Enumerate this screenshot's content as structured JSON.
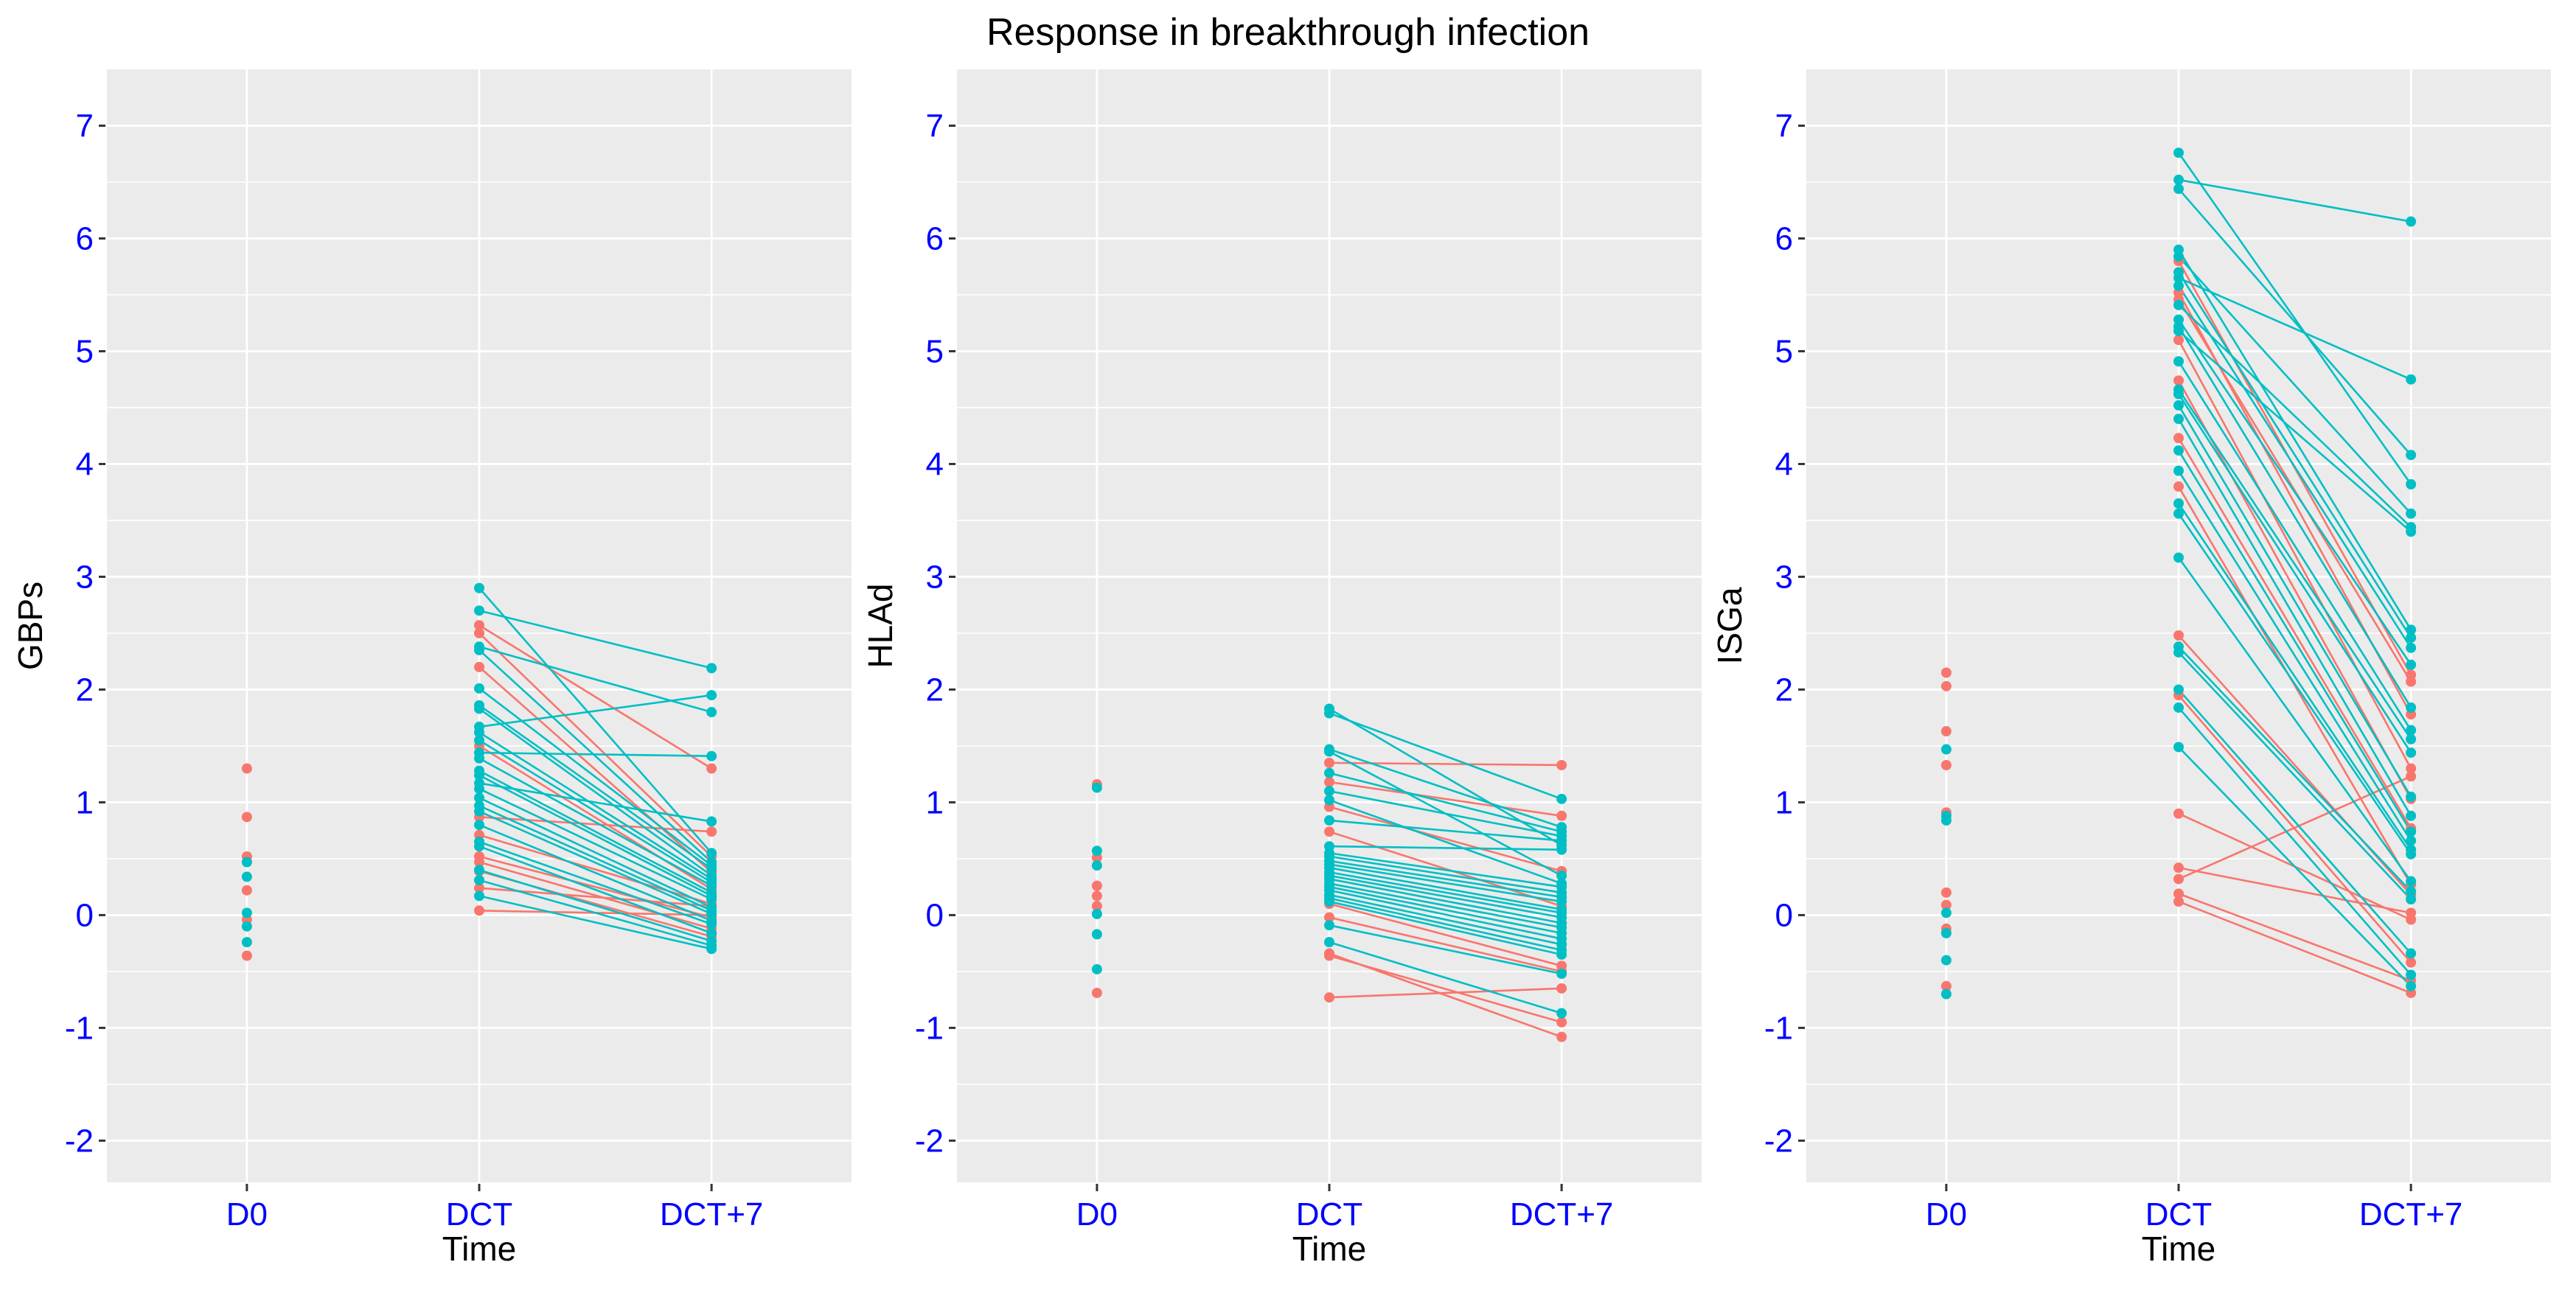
{
  "chart_data": {
    "type": "line",
    "title": "Response in breakthrough infection",
    "xlabel": "Time",
    "categories": [
      "D0",
      "DCT",
      "DCT+7"
    ],
    "ylim": [
      -2.37,
      7.5
    ],
    "yticks": [
      -2,
      -1,
      0,
      1,
      2,
      3,
      4,
      5,
      6,
      7
    ],
    "grid": {
      "horizontal": "major at integers, minor at halves, white on gray",
      "vertical": "major at each category"
    },
    "legend": "none",
    "colors": {
      "group_a": "#F8766D",
      "group_b": "#00BFC4",
      "axis_text": "#0000FF",
      "panel_background": "#EBEBEB",
      "gridline": "#FFFFFF",
      "tick_mark": "#333333",
      "text": "#000000"
    },
    "panels": [
      {
        "ylabel": "GBPs",
        "d0_points": [
          [
            "R",
            1.3
          ],
          [
            "R",
            0.87
          ],
          [
            "R",
            0.52
          ],
          [
            "T",
            0.47
          ],
          [
            "T",
            0.34
          ],
          [
            "R",
            0.22
          ],
          [
            "T",
            0.02
          ],
          [
            "R",
            -0.04
          ],
          [
            "T",
            -0.1
          ],
          [
            "T",
            -0.24
          ],
          [
            "R",
            -0.36
          ]
        ],
        "lines": [
          [
            "R",
            2.57,
            1.3
          ],
          [
            "R",
            2.5,
            0.52
          ],
          [
            "R",
            2.2,
            0.38
          ],
          [
            "R",
            1.5,
            0.23
          ],
          [
            "R",
            0.87,
            0.74
          ],
          [
            "R",
            0.71,
            0.1
          ],
          [
            "R",
            0.52,
            -0.02
          ],
          [
            "R",
            0.47,
            -0.12
          ],
          [
            "R",
            0.39,
            -0.19
          ],
          [
            "R",
            0.24,
            0.08
          ],
          [
            "R",
            0.04,
            0.0
          ],
          [
            "T",
            2.9,
            0.55
          ],
          [
            "T",
            2.7,
            2.19
          ],
          [
            "T",
            2.38,
            1.8
          ],
          [
            "T",
            2.35,
            0.47
          ],
          [
            "T",
            2.01,
            0.44
          ],
          [
            "T",
            1.86,
            0.41
          ],
          [
            "T",
            1.83,
            0.35
          ],
          [
            "T",
            1.67,
            1.95
          ],
          [
            "T",
            1.62,
            0.32
          ],
          [
            "T",
            1.55,
            0.29
          ],
          [
            "T",
            1.44,
            1.41
          ],
          [
            "T",
            1.39,
            0.26
          ],
          [
            "T",
            1.28,
            0.2
          ],
          [
            "T",
            1.24,
            0.17
          ],
          [
            "T",
            1.17,
            0.83
          ],
          [
            "T",
            1.12,
            0.14
          ],
          [
            "T",
            1.04,
            0.07
          ],
          [
            "T",
            0.97,
            0.04
          ],
          [
            "T",
            0.92,
            0.01
          ],
          [
            "T",
            0.8,
            -0.05
          ],
          [
            "T",
            0.65,
            -0.08
          ],
          [
            "T",
            0.61,
            -0.16
          ],
          [
            "T",
            0.4,
            -0.23
          ],
          [
            "T",
            0.31,
            -0.27
          ],
          [
            "T",
            0.17,
            -0.3
          ]
        ]
      },
      {
        "ylabel": "HLAd",
        "d0_points": [
          [
            "T",
            1.13
          ],
          [
            "R",
            1.16
          ],
          [
            "T",
            0.57
          ],
          [
            "R",
            0.51
          ],
          [
            "T",
            0.44
          ],
          [
            "R",
            0.26
          ],
          [
            "R",
            0.17
          ],
          [
            "R",
            0.08
          ],
          [
            "T",
            0.01
          ],
          [
            "T",
            -0.17
          ],
          [
            "T",
            -0.48
          ],
          [
            "R",
            -0.69
          ]
        ],
        "lines": [
          [
            "R",
            1.35,
            1.33
          ],
          [
            "R",
            1.18,
            0.88
          ],
          [
            "R",
            0.96,
            0.39
          ],
          [
            "R",
            0.74,
            0.08
          ],
          [
            "R",
            0.1,
            -0.45
          ],
          [
            "R",
            -0.02,
            -0.5
          ],
          [
            "R",
            -0.34,
            -1.08
          ],
          [
            "R",
            -0.36,
            -0.95
          ],
          [
            "R",
            -0.73,
            -0.65
          ],
          [
            "T",
            1.83,
            0.62
          ],
          [
            "T",
            1.79,
            1.03
          ],
          [
            "T",
            1.47,
            0.78
          ],
          [
            "T",
            1.45,
            0.35
          ],
          [
            "T",
            1.26,
            0.74
          ],
          [
            "T",
            1.1,
            0.7
          ],
          [
            "T",
            1.02,
            0.28
          ],
          [
            "T",
            0.84,
            0.66
          ],
          [
            "T",
            0.61,
            0.58
          ],
          [
            "T",
            0.55,
            0.25
          ],
          [
            "T",
            0.52,
            0.2
          ],
          [
            "T",
            0.48,
            0.16
          ],
          [
            "T",
            0.45,
            0.12
          ],
          [
            "T",
            0.42,
            0.05
          ],
          [
            "T",
            0.38,
            0.02
          ],
          [
            "T",
            0.35,
            -0.02
          ],
          [
            "T",
            0.32,
            -0.07
          ],
          [
            "T",
            0.28,
            -0.11
          ],
          [
            "T",
            0.25,
            -0.16
          ],
          [
            "T",
            0.22,
            -0.21
          ],
          [
            "T",
            0.18,
            -0.26
          ],
          [
            "T",
            0.15,
            -0.31
          ],
          [
            "T",
            0.12,
            -0.35
          ],
          [
            "T",
            -0.09,
            -0.52
          ],
          [
            "T",
            -0.24,
            -0.87
          ]
        ]
      },
      {
        "ylabel": "ISGa",
        "d0_points": [
          [
            "R",
            2.15
          ],
          [
            "R",
            2.03
          ],
          [
            "R",
            1.63
          ],
          [
            "T",
            1.47
          ],
          [
            "R",
            1.33
          ],
          [
            "R",
            0.91
          ],
          [
            "T",
            0.88
          ],
          [
            "T",
            0.84
          ],
          [
            "R",
            0.2
          ],
          [
            "R",
            0.09
          ],
          [
            "T",
            0.02
          ],
          [
            "R",
            -0.12
          ],
          [
            "T",
            -0.16
          ],
          [
            "T",
            -0.4
          ],
          [
            "R",
            -0.63
          ],
          [
            "T",
            -0.7
          ]
        ],
        "lines": [
          [
            "R",
            5.8,
            2.13
          ],
          [
            "R",
            5.52,
            1.78
          ],
          [
            "R",
            5.46,
            2.07
          ],
          [
            "R",
            5.1,
            1.3
          ],
          [
            "R",
            4.74,
            1.03
          ],
          [
            "R",
            4.23,
            0.77
          ],
          [
            "R",
            3.8,
            0.27
          ],
          [
            "R",
            2.48,
            0.18
          ],
          [
            "R",
            1.95,
            -0.42
          ],
          [
            "R",
            0.9,
            -0.04
          ],
          [
            "R",
            0.42,
            0.02
          ],
          [
            "R",
            0.32,
            1.23
          ],
          [
            "R",
            0.19,
            -0.58
          ],
          [
            "R",
            0.12,
            -0.69
          ],
          [
            "T",
            6.76,
            3.82
          ],
          [
            "T",
            6.52,
            6.15
          ],
          [
            "T",
            6.44,
            4.08
          ],
          [
            "T",
            5.9,
            2.53
          ],
          [
            "T",
            5.84,
            3.56
          ],
          [
            "T",
            5.7,
            2.46
          ],
          [
            "T",
            5.65,
            4.75
          ],
          [
            "T",
            5.58,
            2.37
          ],
          [
            "T",
            5.41,
            3.44
          ],
          [
            "T",
            5.28,
            2.22
          ],
          [
            "T",
            5.22,
            1.84
          ],
          [
            "T",
            5.18,
            3.4
          ],
          [
            "T",
            4.91,
            1.64
          ],
          [
            "T",
            4.66,
            1.56
          ],
          [
            "T",
            4.62,
            1.44
          ],
          [
            "T",
            4.52,
            1.05
          ],
          [
            "T",
            4.4,
            0.88
          ],
          [
            "T",
            4.12,
            0.74
          ],
          [
            "T",
            3.94,
            0.66
          ],
          [
            "T",
            3.65,
            0.58
          ],
          [
            "T",
            3.56,
            0.54
          ],
          [
            "T",
            3.17,
            0.3
          ],
          [
            "T",
            2.38,
            0.21
          ],
          [
            "T",
            2.33,
            0.14
          ],
          [
            "T",
            2.0,
            -0.34
          ],
          [
            "T",
            1.84,
            -0.53
          ],
          [
            "T",
            1.49,
            -0.63
          ]
        ]
      }
    ]
  }
}
